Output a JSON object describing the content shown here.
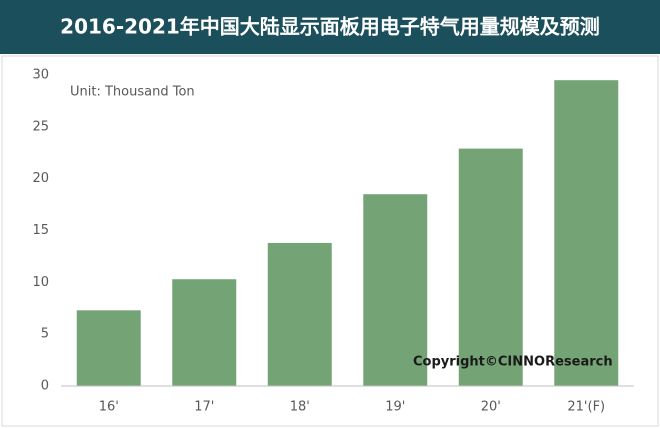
{
  "chart_data": {
    "type": "bar",
    "title": "2016-2021年中国大陆显示面板用电子特气用量规模及预测",
    "unit_note": "Unit: Thousand Ton",
    "copyright": "Copyright©CINNOResearch",
    "categories": [
      "16'",
      "17'",
      "18'",
      "19'",
      "20'",
      "21'(F)"
    ],
    "values": [
      7.3,
      10.3,
      13.8,
      18.5,
      22.9,
      29.5
    ],
    "color": "#74a475",
    "ylim": [
      0,
      30
    ],
    "yticks": [
      0,
      5,
      10,
      15,
      20,
      25,
      30
    ],
    "grid": false
  }
}
